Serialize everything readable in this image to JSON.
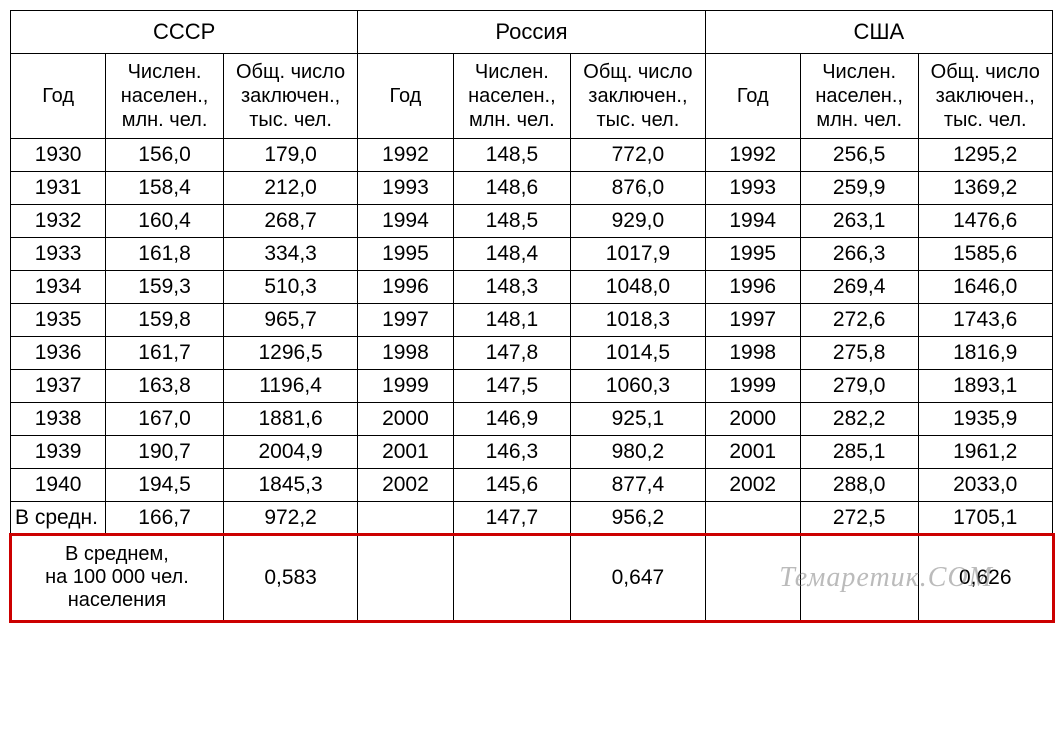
{
  "countries": {
    "ussr": {
      "name": "СССР"
    },
    "russia": {
      "name": "Россия"
    },
    "usa": {
      "name": "США"
    }
  },
  "columns": {
    "year": "Год",
    "population": "Числен. населен., млн. чел.",
    "prisoners": "Общ. число заключен., тыс. чел."
  },
  "rows": [
    {
      "ussr": [
        "1930",
        "156,0",
        "179,0"
      ],
      "russia": [
        "1992",
        "148,5",
        "772,0"
      ],
      "usa": [
        "1992",
        "256,5",
        "1295,2"
      ]
    },
    {
      "ussr": [
        "1931",
        "158,4",
        "212,0"
      ],
      "russia": [
        "1993",
        "148,6",
        "876,0"
      ],
      "usa": [
        "1993",
        "259,9",
        "1369,2"
      ]
    },
    {
      "ussr": [
        "1932",
        "160,4",
        "268,7"
      ],
      "russia": [
        "1994",
        "148,5",
        "929,0"
      ],
      "usa": [
        "1994",
        "263,1",
        "1476,6"
      ]
    },
    {
      "ussr": [
        "1933",
        "161,8",
        "334,3"
      ],
      "russia": [
        "1995",
        "148,4",
        "1017,9"
      ],
      "usa": [
        "1995",
        "266,3",
        "1585,6"
      ]
    },
    {
      "ussr": [
        "1934",
        "159,3",
        "510,3"
      ],
      "russia": [
        "1996",
        "148,3",
        "1048,0"
      ],
      "usa": [
        "1996",
        "269,4",
        "1646,0"
      ]
    },
    {
      "ussr": [
        "1935",
        "159,8",
        "965,7"
      ],
      "russia": [
        "1997",
        "148,1",
        "1018,3"
      ],
      "usa": [
        "1997",
        "272,6",
        "1743,6"
      ]
    },
    {
      "ussr": [
        "1936",
        "161,7",
        "1296,5"
      ],
      "russia": [
        "1998",
        "147,8",
        "1014,5"
      ],
      "usa": [
        "1998",
        "275,8",
        "1816,9"
      ]
    },
    {
      "ussr": [
        "1937",
        "163,8",
        "1196,4"
      ],
      "russia": [
        "1999",
        "147,5",
        "1060,3"
      ],
      "usa": [
        "1999",
        "279,0",
        "1893,1"
      ]
    },
    {
      "ussr": [
        "1938",
        "167,0",
        "1881,6"
      ],
      "russia": [
        "2000",
        "146,9",
        "925,1"
      ],
      "usa": [
        "2000",
        "282,2",
        "1935,9"
      ]
    },
    {
      "ussr": [
        "1939",
        "190,7",
        "2004,9"
      ],
      "russia": [
        "2001",
        "146,3",
        "980,2"
      ],
      "usa": [
        "2001",
        "285,1",
        "1961,2"
      ]
    },
    {
      "ussr": [
        "1940",
        "194,5",
        "1845,3"
      ],
      "russia": [
        "2002",
        "145,6",
        "877,4"
      ],
      "usa": [
        "2002",
        "288,0",
        "2033,0"
      ]
    }
  ],
  "average": {
    "label": "В средн.",
    "ussr": [
      "166,7",
      "972,2"
    ],
    "russia": [
      "147,7",
      "956,2"
    ],
    "usa": [
      "272,5",
      "1705,1"
    ]
  },
  "per100k": {
    "label": "В среднем,\nна 100 000 чел.\nнаселения",
    "ussr": "0,583",
    "russia": "0,647",
    "usa": "0,626"
  },
  "watermark": "Темаретик.COM",
  "style": {
    "font_size_cell": 21,
    "font_size_header": 22,
    "font_size_colheader": 20,
    "border_color": "#000000",
    "highlight_border_color": "#cc0000",
    "highlight_border_width": 3,
    "background": "#ffffff",
    "watermark_color": "rgba(120,120,120,0.5)"
  }
}
